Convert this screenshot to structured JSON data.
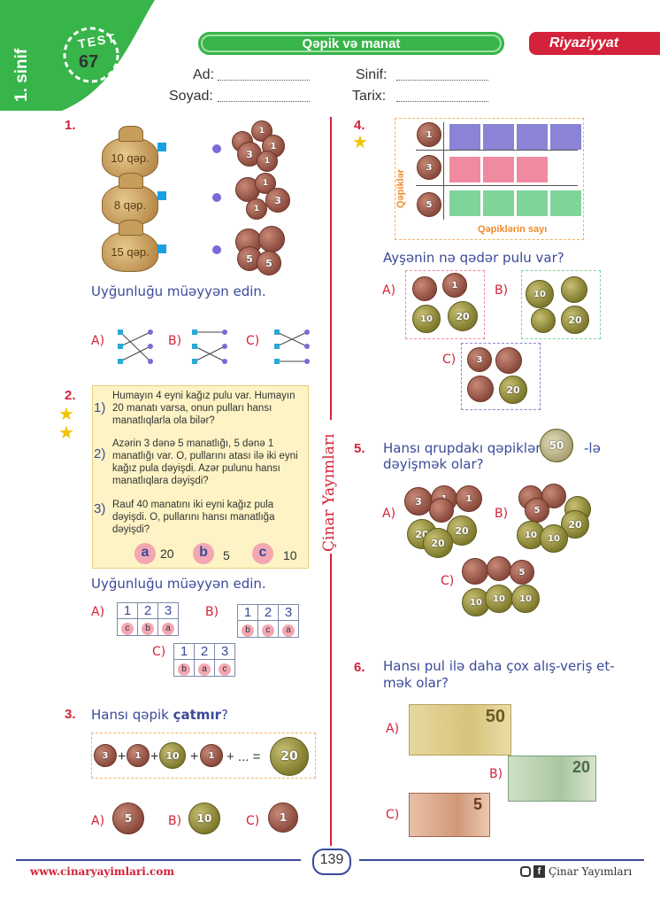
{
  "header": {
    "grade": "1. sinif",
    "test_label": "TEST",
    "test_number": "67",
    "topic": "Qəpik və manat",
    "subject": "Riyaziyyat",
    "fields": {
      "ad": "Ad:",
      "sinif": "Sinif:",
      "soyad": "Soyad:",
      "tarix": "Tarix:"
    }
  },
  "q1": {
    "num": "1.",
    "bags": [
      "10 qəp.",
      "8 qəp.",
      "15 qəp."
    ],
    "prompt": "Uyğunluğu müəyyən edin.",
    "options": [
      "A)",
      "B)",
      "C)"
    ]
  },
  "q2": {
    "num": "2.",
    "items": [
      {
        "num": "1)",
        "text": "Humayın 4 eyni kağız pulu var. Humayın 20 manatı varsa, onun pulları hansı manatlıqlarla ola bilər?"
      },
      {
        "num": "2)",
        "text": "Azərin 3 dənə 5 manatlığı, 5 dənə 1 manatlığı var. O, pullarını atası ilə iki eyni kağız pula dəyişdi. Azər pulunu hansı manatlıqlara dəyişdi?"
      },
      {
        "num": "3)",
        "text": "Rauf 40 manatını iki eyni kağız pula dəyişdi. O, pullarını hansı manatlığa dəyişdi?"
      }
    ],
    "choices": [
      {
        "letter": "a",
        "value": "20"
      },
      {
        "letter": "b",
        "value": "5"
      },
      {
        "letter": "c",
        "value": "10"
      }
    ],
    "prompt": "Uyğunluğu müəyyən edin.",
    "tables": [
      {
        "label": "A)",
        "nums": [
          "1",
          "2",
          "3"
        ],
        "letters": [
          "c",
          "b",
          "a"
        ]
      },
      {
        "label": "B)",
        "nums": [
          "1",
          "2",
          "3"
        ],
        "letters": [
          "b",
          "c",
          "a"
        ]
      },
      {
        "label": "C)",
        "nums": [
          "1",
          "2",
          "3"
        ],
        "letters": [
          "b",
          "a",
          "c"
        ]
      }
    ]
  },
  "q3": {
    "num": "3.",
    "prompt_start": "Hansı qəpik ",
    "prompt_bold": "çatmır",
    "prompt_end": "?",
    "equation_symbols": [
      "+",
      "+",
      "+",
      "+ ... ="
    ],
    "equation_coins": [
      "3",
      "1",
      "10",
      "1",
      "20"
    ],
    "options": [
      {
        "label": "A)",
        "coin": "5"
      },
      {
        "label": "B)",
        "coin": "10"
      },
      {
        "label": "C)",
        "coin": "1"
      }
    ]
  },
  "q4": {
    "num": "4.",
    "y_label": "Qəpiklər",
    "x_label": "Qəpiklərin sayı",
    "row_coins": [
      "1",
      "3",
      "5"
    ],
    "prompt": "Ayşənin nə qədər pulu var?",
    "options": [
      {
        "label": "A)",
        "coins": [
          "1",
          "10",
          "20"
        ]
      },
      {
        "label": "B)",
        "coins": [
          "10",
          "20"
        ]
      },
      {
        "label": "C)",
        "coins": [
          "3",
          "20"
        ]
      }
    ]
  },
  "q5": {
    "num": "5.",
    "prompt_a": "Hansı qrupdakı qəpikləri",
    "coin": "50",
    "prompt_b": "-lə",
    "prompt_c": "dəyişmək olar?",
    "options": [
      "A)",
      "B)",
      "C)"
    ],
    "coin_labels": {
      "a": [
        "3",
        "1",
        "1",
        "20",
        "20",
        "20"
      ],
      "b": [
        "5",
        "10",
        "20",
        "10"
      ],
      "c": [
        "5",
        "10",
        "10",
        "10"
      ]
    }
  },
  "q6": {
    "num": "6.",
    "prompt_line1": "Hansı pul ilə daha çox alış-veriş et-",
    "prompt_line2": "mək olar?",
    "options": [
      {
        "label": "A)",
        "value": "50"
      },
      {
        "label": "B)",
        "value": "20"
      },
      {
        "label": "C)",
        "value": "5"
      }
    ]
  },
  "side_text": "Çinar Yayımları",
  "footer": {
    "website": "www.cinaryayimlari.com",
    "page": "139",
    "brand": "Çinar Yayımları"
  },
  "colors": {
    "green": "#37b44a",
    "red": "#d3223a",
    "blue": "#3b4a9a",
    "purple": "#8a83d6",
    "pink": "#f08aa0",
    "mint": "#7fd49a"
  }
}
